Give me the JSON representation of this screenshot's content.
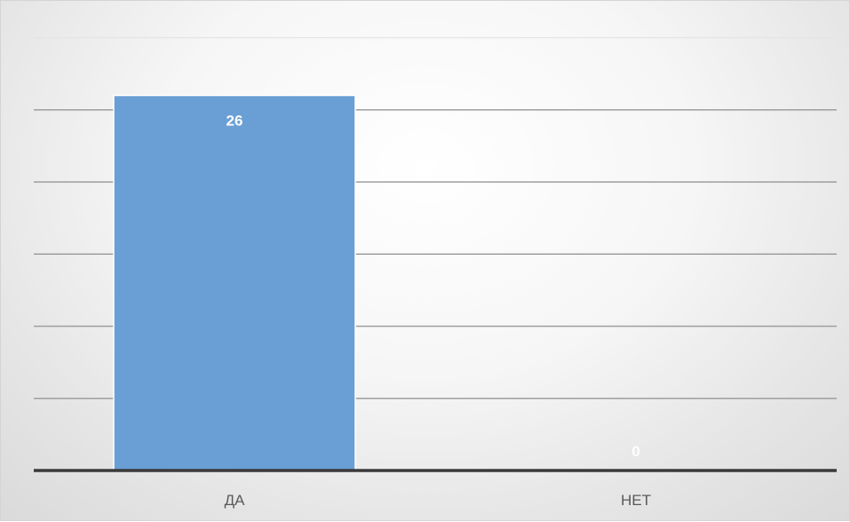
{
  "chart_data": {
    "type": "bar",
    "categories": [
      "ДА",
      "НЕТ"
    ],
    "values": [
      26,
      0
    ],
    "title": "",
    "xlabel": "",
    "ylabel": "",
    "ylim": [
      0,
      30
    ],
    "ytick_step": 5,
    "show_y_tick_labels": false,
    "grid": true,
    "legend": "none",
    "bar_color": "#6a9fd6",
    "data_label_color": "#ffffff",
    "tick_label_color": "#595959",
    "axis_color": "#3a3a3a",
    "grid_color": "#9e9e9e"
  }
}
